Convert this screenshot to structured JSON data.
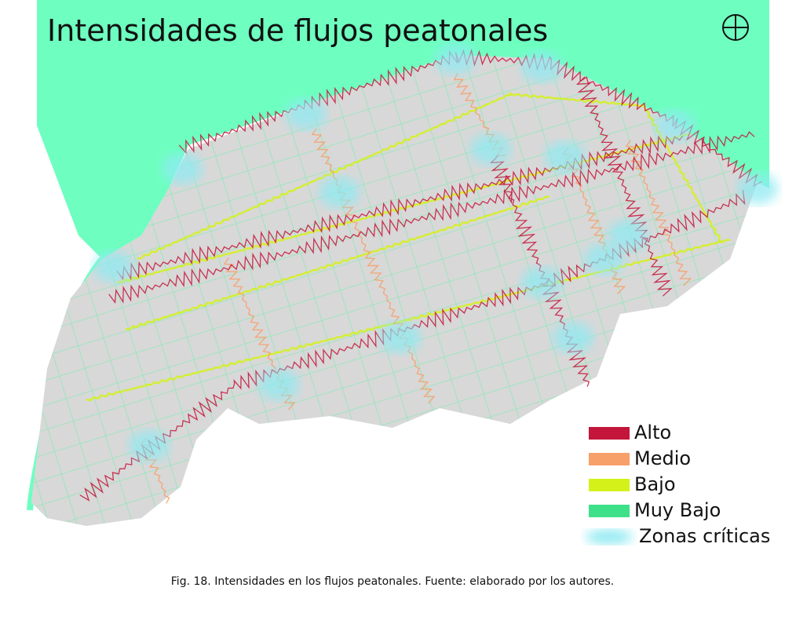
{
  "title": "Intensidades de flujos peatonales",
  "legend": [
    {
      "label": "Alto",
      "color": "#c4153a"
    },
    {
      "label": "Medio",
      "color": "#f7a06a"
    },
    {
      "label": "Bajo",
      "color": "#d4f21a"
    },
    {
      "label": "Muy Bajo",
      "color": "#3ee08a"
    },
    {
      "label": "Zonas críticas",
      "color": "#8feaf2"
    }
  ],
  "caption": "Fig. 18. Intensidades en los flujos peatonales. Fuente: elaborado por los autores."
}
